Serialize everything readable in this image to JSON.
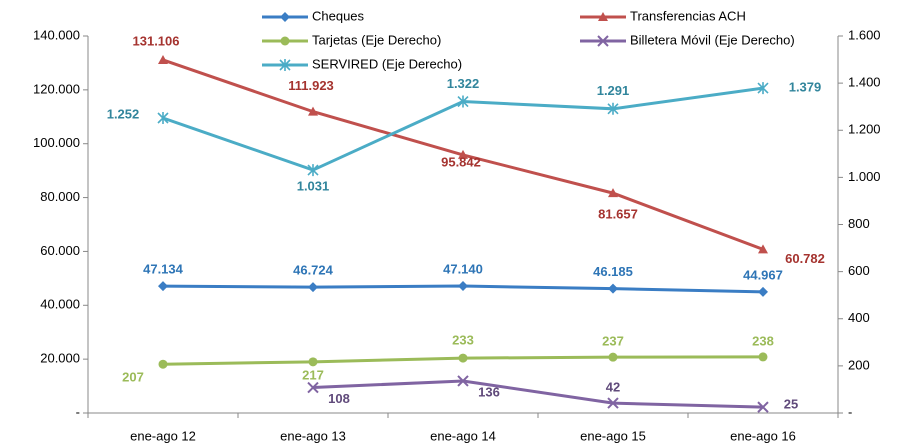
{
  "chart_data": {
    "type": "line",
    "categories": [
      "ene-ago 12",
      "ene-ago 13",
      "ene-ago 14",
      "ene-ago 15",
      "ene-ago 16"
    ],
    "ylim": [
      0,
      140000
    ],
    "yticks": [
      {
        "value": 0,
        "label": "-"
      },
      {
        "value": 20000,
        "label": "20.000"
      },
      {
        "value": 40000,
        "label": "40.000"
      },
      {
        "value": 60000,
        "label": "60.000"
      },
      {
        "value": 80000,
        "label": "80.000"
      },
      {
        "value": 100000,
        "label": "100.000"
      },
      {
        "value": 120000,
        "label": "120.000"
      },
      {
        "value": 140000,
        "label": "140.000"
      }
    ],
    "y2lim": [
      0,
      1600
    ],
    "y2ticks": [
      {
        "value": 0,
        "label": "-"
      },
      200,
      400,
      600,
      800,
      {
        "value": 1000,
        "label": "1.000"
      },
      {
        "value": 1200,
        "label": "1.200"
      },
      {
        "value": 1400,
        "label": "1.400"
      },
      {
        "value": 1600,
        "label": "1.600"
      }
    ],
    "series": [
      {
        "name": "Cheques",
        "color": "#3a7dc4",
        "marker": "diamond",
        "values": [
          47134,
          46724,
          47140,
          46185,
          44967
        ],
        "value_labels": [
          "47.134",
          "46.724",
          "47.140",
          "46.185",
          "44.967"
        ]
      },
      {
        "name": "Transferencias ACH",
        "color": "#c0504d",
        "marker": "triangle",
        "values": [
          131106,
          111923,
          95842,
          81657,
          60782
        ],
        "value_labels": [
          "131.106",
          "111.923",
          "95.842",
          "81.657",
          "60.782"
        ]
      },
      {
        "name": "Tarjetas (Eje Derecho)",
        "color": "#9bbb59",
        "marker": "circle",
        "axis": "y2",
        "values": [
          207,
          217,
          233,
          237,
          238
        ],
        "value_labels": [
          "207",
          "217",
          "233",
          "237",
          "238"
        ]
      },
      {
        "name": "Billetera Móvil (Eje Derecho)",
        "color": "#8064a2",
        "marker": "x",
        "axis": "y2",
        "values": [
          null,
          108,
          136,
          42,
          25
        ],
        "value_labels": [
          null,
          "108",
          "136",
          "42",
          "25"
        ]
      },
      {
        "name": "SERVIRED (Eje Derecho)",
        "color": "#4bacc6",
        "marker": "star",
        "axis": "y2",
        "values": [
          1252,
          1031,
          1322,
          1291,
          1379
        ],
        "value_labels": [
          "1.252",
          "1.031",
          "1.322",
          "1.291",
          "1.379"
        ]
      }
    ]
  }
}
